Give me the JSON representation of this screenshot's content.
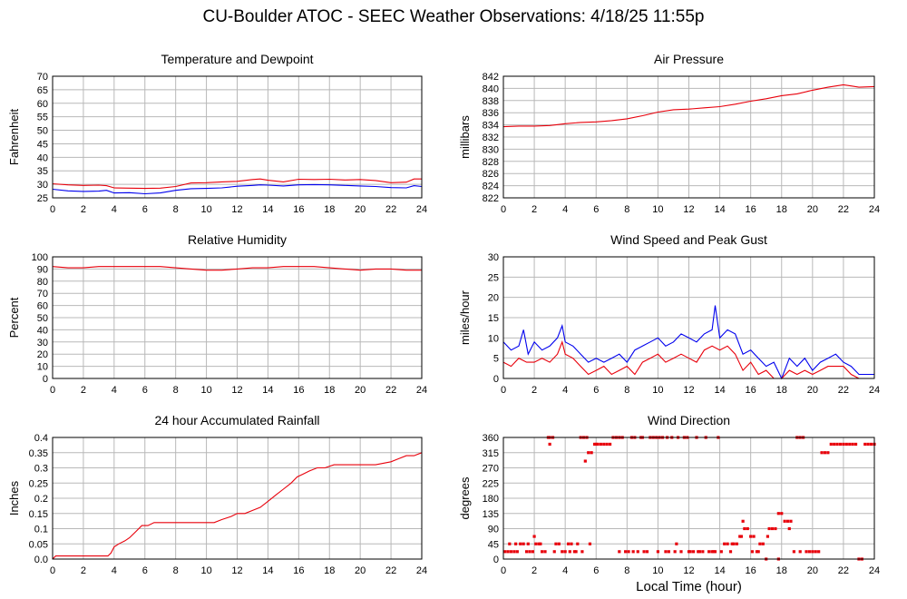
{
  "page": {
    "title": "CU-Boulder ATOC - SEEC Weather Observations: 4/18/25 11:55p",
    "x_axis_label": "Local Time (hour)"
  },
  "colors": {
    "red": "#e8000b",
    "blue": "#0000ee",
    "grid": "#b8b8b8",
    "frame": "#000000"
  },
  "chart_data": [
    {
      "id": "temperature",
      "type": "line",
      "title": "Temperature and Dewpoint",
      "ylabel": "Fahrenheit",
      "xlabel": "",
      "xlim": [
        0,
        24
      ],
      "ylim": [
        25,
        70
      ],
      "yticks": [
        25,
        30,
        35,
        40,
        45,
        50,
        55,
        60,
        65,
        70
      ],
      "xticks": [
        0,
        2,
        4,
        6,
        8,
        10,
        12,
        14,
        16,
        18,
        20,
        22,
        24
      ],
      "grid": true,
      "series": [
        {
          "color": "red",
          "x": [
            0,
            1,
            2,
            3,
            3.5,
            4,
            5,
            6,
            7,
            8,
            9,
            10,
            11,
            12,
            13,
            13.5,
            14,
            15,
            16,
            17,
            18,
            19,
            20,
            21,
            22,
            23,
            23.5,
            24
          ],
          "values": [
            30.2,
            29.8,
            29.6,
            29.7,
            29.5,
            28.7,
            28.6,
            28.5,
            28.6,
            29.2,
            30.5,
            30.6,
            30.9,
            31.1,
            31.8,
            32,
            31.5,
            30.9,
            31.9,
            31.8,
            31.9,
            31.6,
            31.8,
            31.4,
            30.6,
            30.8,
            32,
            32
          ]
        },
        {
          "color": "blue",
          "x": [
            0,
            1,
            2,
            3,
            3.5,
            4,
            5,
            6,
            7,
            8,
            9,
            10,
            11,
            12,
            13,
            13.5,
            14,
            15,
            16,
            17,
            18,
            19,
            20,
            21,
            22,
            23,
            23.5,
            24
          ],
          "values": [
            28.2,
            27.6,
            27.4,
            27.5,
            27.8,
            26.8,
            26.9,
            26.5,
            26.8,
            27.8,
            28.4,
            28.5,
            28.7,
            29.3,
            29.6,
            29.8,
            29.7,
            29.4,
            29.8,
            29.9,
            29.8,
            29.6,
            29.4,
            29.2,
            28.8,
            28.7,
            29.5,
            29.2
          ]
        }
      ]
    },
    {
      "id": "pressure",
      "type": "line",
      "title": "Air Pressure",
      "ylabel": "millibars",
      "xlabel": "",
      "xlim": [
        0,
        24
      ],
      "ylim": [
        822,
        842
      ],
      "yticks": [
        822,
        824,
        826,
        828,
        830,
        832,
        834,
        836,
        838,
        840,
        842
      ],
      "xticks": [
        0,
        2,
        4,
        6,
        8,
        10,
        12,
        14,
        16,
        18,
        20,
        22,
        24
      ],
      "grid": true,
      "series": [
        {
          "color": "red",
          "x": [
            0,
            1,
            2,
            3,
            4,
            5,
            6,
            7,
            8,
            9,
            10,
            11,
            12,
            13,
            14,
            15,
            16,
            17,
            18,
            19,
            20,
            21,
            22,
            22.5,
            23,
            24
          ],
          "values": [
            833.7,
            833.8,
            833.8,
            833.9,
            834.2,
            834.4,
            834.5,
            834.7,
            835.0,
            835.5,
            836.1,
            836.5,
            836.6,
            836.8,
            837.0,
            837.4,
            837.9,
            838.3,
            838.8,
            839.1,
            839.7,
            840.2,
            840.6,
            840.4,
            840.2,
            840.3
          ]
        }
      ]
    },
    {
      "id": "humidity",
      "type": "line",
      "title": "Relative Humidity",
      "ylabel": "Percent",
      "xlabel": "",
      "xlim": [
        0,
        24
      ],
      "ylim": [
        0,
        100
      ],
      "yticks": [
        0,
        10,
        20,
        30,
        40,
        50,
        60,
        70,
        80,
        90,
        100
      ],
      "xticks": [
        0,
        2,
        4,
        6,
        8,
        10,
        12,
        14,
        16,
        18,
        20,
        22,
        24
      ],
      "grid": true,
      "series": [
        {
          "color": "red",
          "x": [
            0,
            1,
            2,
            3,
            4,
            5,
            6,
            7,
            8,
            9,
            10,
            11,
            12,
            13,
            14,
            15,
            16,
            17,
            18,
            19,
            20,
            21,
            22,
            23,
            24
          ],
          "values": [
            92,
            91,
            91,
            92,
            92,
            92,
            92,
            92,
            91,
            90,
            89,
            89,
            90,
            91,
            91,
            92,
            92,
            92,
            91,
            90,
            89,
            90,
            90,
            89,
            89
          ]
        }
      ]
    },
    {
      "id": "wind",
      "type": "line",
      "title": "Wind Speed and Peak Gust",
      "ylabel": "miles/hour",
      "xlabel": "",
      "xlim": [
        0,
        24
      ],
      "ylim": [
        0,
        30
      ],
      "yticks": [
        0,
        5,
        10,
        15,
        20,
        25,
        30
      ],
      "xticks": [
        0,
        2,
        4,
        6,
        8,
        10,
        12,
        14,
        16,
        18,
        20,
        22,
        24
      ],
      "grid": true,
      "series": [
        {
          "color": "blue",
          "x": [
            0,
            0.5,
            1,
            1.3,
            1.6,
            2,
            2.5,
            3,
            3.5,
            3.8,
            4,
            4.5,
            5,
            5.5,
            6,
            6.5,
            7,
            7.5,
            8,
            8.5,
            9,
            9.5,
            10,
            10.5,
            11,
            11.5,
            12,
            12.5,
            13,
            13.5,
            13.7,
            14,
            14.5,
            15,
            15.5,
            16,
            16.5,
            17,
            17.5,
            18,
            18.5,
            19,
            19.5,
            20,
            20.5,
            21,
            21.5,
            22,
            22.5,
            23,
            23.5,
            24
          ],
          "values": [
            9,
            7,
            8,
            12,
            6,
            9,
            7,
            8,
            10,
            13,
            9,
            8,
            6,
            4,
            5,
            4,
            5,
            6,
            4,
            7,
            8,
            9,
            10,
            8,
            9,
            11,
            10,
            9,
            11,
            12,
            18,
            10,
            12,
            11,
            6,
            7,
            5,
            3,
            4,
            0,
            5,
            3,
            5,
            2,
            4,
            5,
            6,
            4,
            3,
            1,
            1,
            1
          ]
        },
        {
          "color": "red",
          "x": [
            0,
            0.5,
            1,
            1.5,
            2,
            2.5,
            3,
            3.5,
            3.8,
            4,
            4.5,
            5,
            5.5,
            6,
            6.5,
            7,
            7.5,
            8,
            8.5,
            9,
            9.5,
            10,
            10.5,
            11,
            11.5,
            12,
            12.5,
            13,
            13.5,
            14,
            14.5,
            15,
            15.5,
            16,
            16.5,
            17,
            17.5,
            18,
            18.5,
            19,
            19.5,
            20,
            20.5,
            21,
            21.5,
            22,
            22.5,
            23
          ],
          "values": [
            4,
            3,
            5,
            4,
            4,
            5,
            4,
            6,
            9,
            6,
            5,
            3,
            1,
            2,
            3,
            1,
            2,
            3,
            1,
            4,
            5,
            6,
            4,
            5,
            6,
            5,
            4,
            7,
            8,
            7,
            8,
            6,
            2,
            4,
            1,
            2,
            0,
            0,
            2,
            1,
            2,
            1,
            2,
            3,
            3,
            3,
            1,
            0
          ]
        }
      ]
    },
    {
      "id": "rainfall",
      "type": "line",
      "title": "24 hour Accumulated Rainfall",
      "ylabel": "Inches",
      "xlabel": "",
      "xlim": [
        0,
        24
      ],
      "ylim": [
        0,
        0.4
      ],
      "yticks": [
        0.0,
        0.05,
        0.1,
        0.15,
        0.2,
        0.25,
        0.3,
        0.35,
        0.4
      ],
      "ytick_labels": [
        "0.0",
        "0.05",
        "0.1",
        "0.15",
        "0.2",
        "0.25",
        "0.3",
        "0.35",
        "0.4"
      ],
      "xticks": [
        0,
        2,
        4,
        6,
        8,
        10,
        12,
        14,
        16,
        18,
        20,
        22,
        24
      ],
      "grid": true,
      "series": [
        {
          "color": "red",
          "x": [
            0,
            0.2,
            3.6,
            3.8,
            4.0,
            4.3,
            4.7,
            5.0,
            5.4,
            5.8,
            6.2,
            6.6,
            9.5,
            10.5,
            11,
            11.6,
            12.0,
            12.5,
            13,
            13.5,
            14.0,
            14.5,
            15.0,
            15.5,
            15.9,
            16.3,
            16.7,
            17.2,
            17.7,
            18.3,
            19,
            20,
            21,
            22,
            22.5,
            23,
            23.5,
            24
          ],
          "values": [
            0.0,
            0.01,
            0.01,
            0.02,
            0.04,
            0.05,
            0.06,
            0.07,
            0.09,
            0.11,
            0.11,
            0.12,
            0.12,
            0.12,
            0.13,
            0.14,
            0.15,
            0.15,
            0.16,
            0.17,
            0.19,
            0.21,
            0.23,
            0.25,
            0.27,
            0.28,
            0.29,
            0.3,
            0.3,
            0.31,
            0.31,
            0.31,
            0.31,
            0.32,
            0.33,
            0.34,
            0.34,
            0.35
          ]
        }
      ]
    },
    {
      "id": "direction",
      "type": "scatter",
      "title": "Wind Direction",
      "ylabel": "degrees",
      "xlabel": "Local Time (hour)",
      "xlim": [
        0,
        24
      ],
      "ylim": [
        0,
        360
      ],
      "yticks": [
        0,
        45,
        90,
        135,
        180,
        225,
        270,
        315,
        360
      ],
      "xticks": [
        0,
        2,
        4,
        6,
        8,
        10,
        12,
        14,
        16,
        18,
        20,
        22,
        24
      ],
      "grid": true,
      "series": [
        {
          "color": "red",
          "x": [
            0.1,
            0.3,
            0.5,
            0.7,
            0.9,
            1.1,
            1.3,
            1.5,
            1.7,
            1.9,
            2.1,
            2.3,
            2.5,
            2.7,
            2.9,
            3.0,
            3.2,
            3.4,
            3.6,
            3.8,
            4.0,
            4.2,
            4.4,
            4.6,
            4.8,
            5.0,
            5.2,
            5.4,
            5.5,
            5.7,
            5.9,
            6.1,
            6.3,
            6.5,
            6.7,
            6.9,
            7.1,
            7.3,
            7.5,
            7.7,
            7.9,
            8.1,
            8.3,
            8.5,
            8.7,
            8.9,
            9.1,
            9.3,
            9.5,
            9.7,
            9.9,
            10.1,
            10.3,
            10.5,
            10.7,
            10.9,
            11.1,
            11.3,
            11.5,
            11.7,
            11.9,
            12.1,
            12.3,
            12.5,
            12.7,
            12.9,
            13.1,
            13.3,
            13.5,
            13.7,
            13.9,
            14.1,
            14.3,
            14.5,
            14.7,
            14.9,
            15.1,
            15.3,
            15.5,
            15.6,
            15.8,
            16.0,
            16.2,
            16.4,
            16.6,
            16.8,
            17.0,
            17.2,
            17.4,
            17.6,
            17.8,
            18.0,
            18.2,
            18.4,
            18.6,
            18.8,
            19.0,
            19.2,
            19.4,
            19.6,
            19.8,
            20.0,
            20.2,
            20.4,
            20.6,
            20.8,
            21.0,
            21.2,
            21.4,
            21.6,
            21.8,
            22.0,
            22.2,
            22.4,
            22.6,
            22.8,
            23.0,
            23.2,
            23.4,
            23.6,
            23.8,
            24.0,
            0.4,
            0.8,
            1.6,
            2.0,
            2.4,
            3.0,
            3.3,
            4.3,
            4.7,
            5.1,
            5.3,
            5.6,
            6.0,
            7.5,
            8.4,
            9.0,
            10.0,
            10.6,
            11.2,
            12.0,
            12.6,
            13.6,
            14.8,
            15.4,
            16.1,
            16.5,
            17.1,
            17.8,
            18.5,
            19.2
          ],
          "values": [
            22,
            22,
            22,
            22,
            22,
            45,
            45,
            22,
            22,
            22,
            45,
            45,
            22,
            22,
            360,
            360,
            360,
            45,
            45,
            22,
            22,
            45,
            45,
            22,
            45,
            360,
            360,
            360,
            315,
            315,
            340,
            340,
            340,
            340,
            340,
            340,
            360,
            360,
            360,
            360,
            22,
            22,
            360,
            360,
            22,
            360,
            22,
            22,
            360,
            360,
            360,
            360,
            360,
            22,
            22,
            360,
            22,
            360,
            22,
            360,
            360,
            22,
            22,
            360,
            22,
            22,
            360,
            22,
            22,
            22,
            360,
            22,
            45,
            45,
            22,
            45,
            45,
            67,
            112,
            90,
            90,
            67,
            67,
            22,
            45,
            45,
            0,
            90,
            90,
            90,
            0,
            135,
            112,
            112,
            112,
            22,
            360,
            360,
            360,
            22,
            22,
            22,
            22,
            22,
            315,
            315,
            315,
            340,
            340,
            340,
            340,
            340,
            340,
            340,
            340,
            340,
            0,
            0,
            340,
            340,
            340,
            340,
            45,
            45,
            45,
            67,
            45,
            340,
            22,
            22,
            22,
            22,
            290,
            45,
            340,
            22,
            22,
            360,
            22,
            360,
            45,
            22,
            22,
            22,
            45,
            67,
            22,
            22,
            67,
            135,
            90,
            22
          ]
        }
      ]
    }
  ]
}
